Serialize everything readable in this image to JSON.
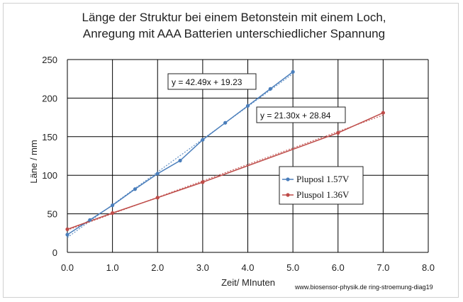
{
  "chart_data": {
    "type": "scatter",
    "title_lines": [
      "Länge der Struktur bei einem Betonstein mit einem Loch,",
      "Anregung mit AAA Batterien unterschiedlicher Spannung"
    ],
    "xlabel": "Zeit/ MInuten",
    "ylabel": "Läne / mm",
    "xlim": [
      0,
      8
    ],
    "ylim": [
      0,
      250
    ],
    "x_ticks": [
      "0.0",
      "1.0",
      "2.0",
      "3.0",
      "4.0",
      "5.0",
      "6.0",
      "7.0",
      "8.0"
    ],
    "y_ticks": [
      "0",
      "50",
      "100",
      "150",
      "200",
      "250"
    ],
    "x_tick_values": [
      0,
      1,
      2,
      3,
      4,
      5,
      6,
      7,
      8
    ],
    "y_tick_values": [
      0,
      50,
      100,
      150,
      200,
      250
    ],
    "grid": true,
    "legend_position": "right-middle",
    "series": [
      {
        "name": "Pluposl 1.57V",
        "color": "#4a7ebb",
        "x": [
          0,
          0.5,
          1,
          1.5,
          2,
          2.5,
          3,
          3.5,
          4,
          4.5,
          5
        ],
        "y": [
          23,
          42,
          61,
          82,
          102,
          119,
          146,
          168,
          190,
          212,
          234
        ],
        "trendline": {
          "slope": 42.49,
          "intercept": 19.23,
          "label": "y = 42.49x + 19.23",
          "x_range": [
            0,
            5
          ]
        }
      },
      {
        "name": "Pluspol 1.36V",
        "color": "#be4b48",
        "x": [
          0,
          1,
          2,
          3,
          6,
          7
        ],
        "y": [
          30,
          51,
          71,
          91,
          155,
          181
        ],
        "trendline": {
          "slope": 21.3,
          "intercept": 28.84,
          "label": "y = 21.30x + 28.84",
          "x_range": [
            0,
            7
          ]
        }
      }
    ],
    "watermark": "www.biosensor-physik.de ring-stroemung-diag19"
  }
}
